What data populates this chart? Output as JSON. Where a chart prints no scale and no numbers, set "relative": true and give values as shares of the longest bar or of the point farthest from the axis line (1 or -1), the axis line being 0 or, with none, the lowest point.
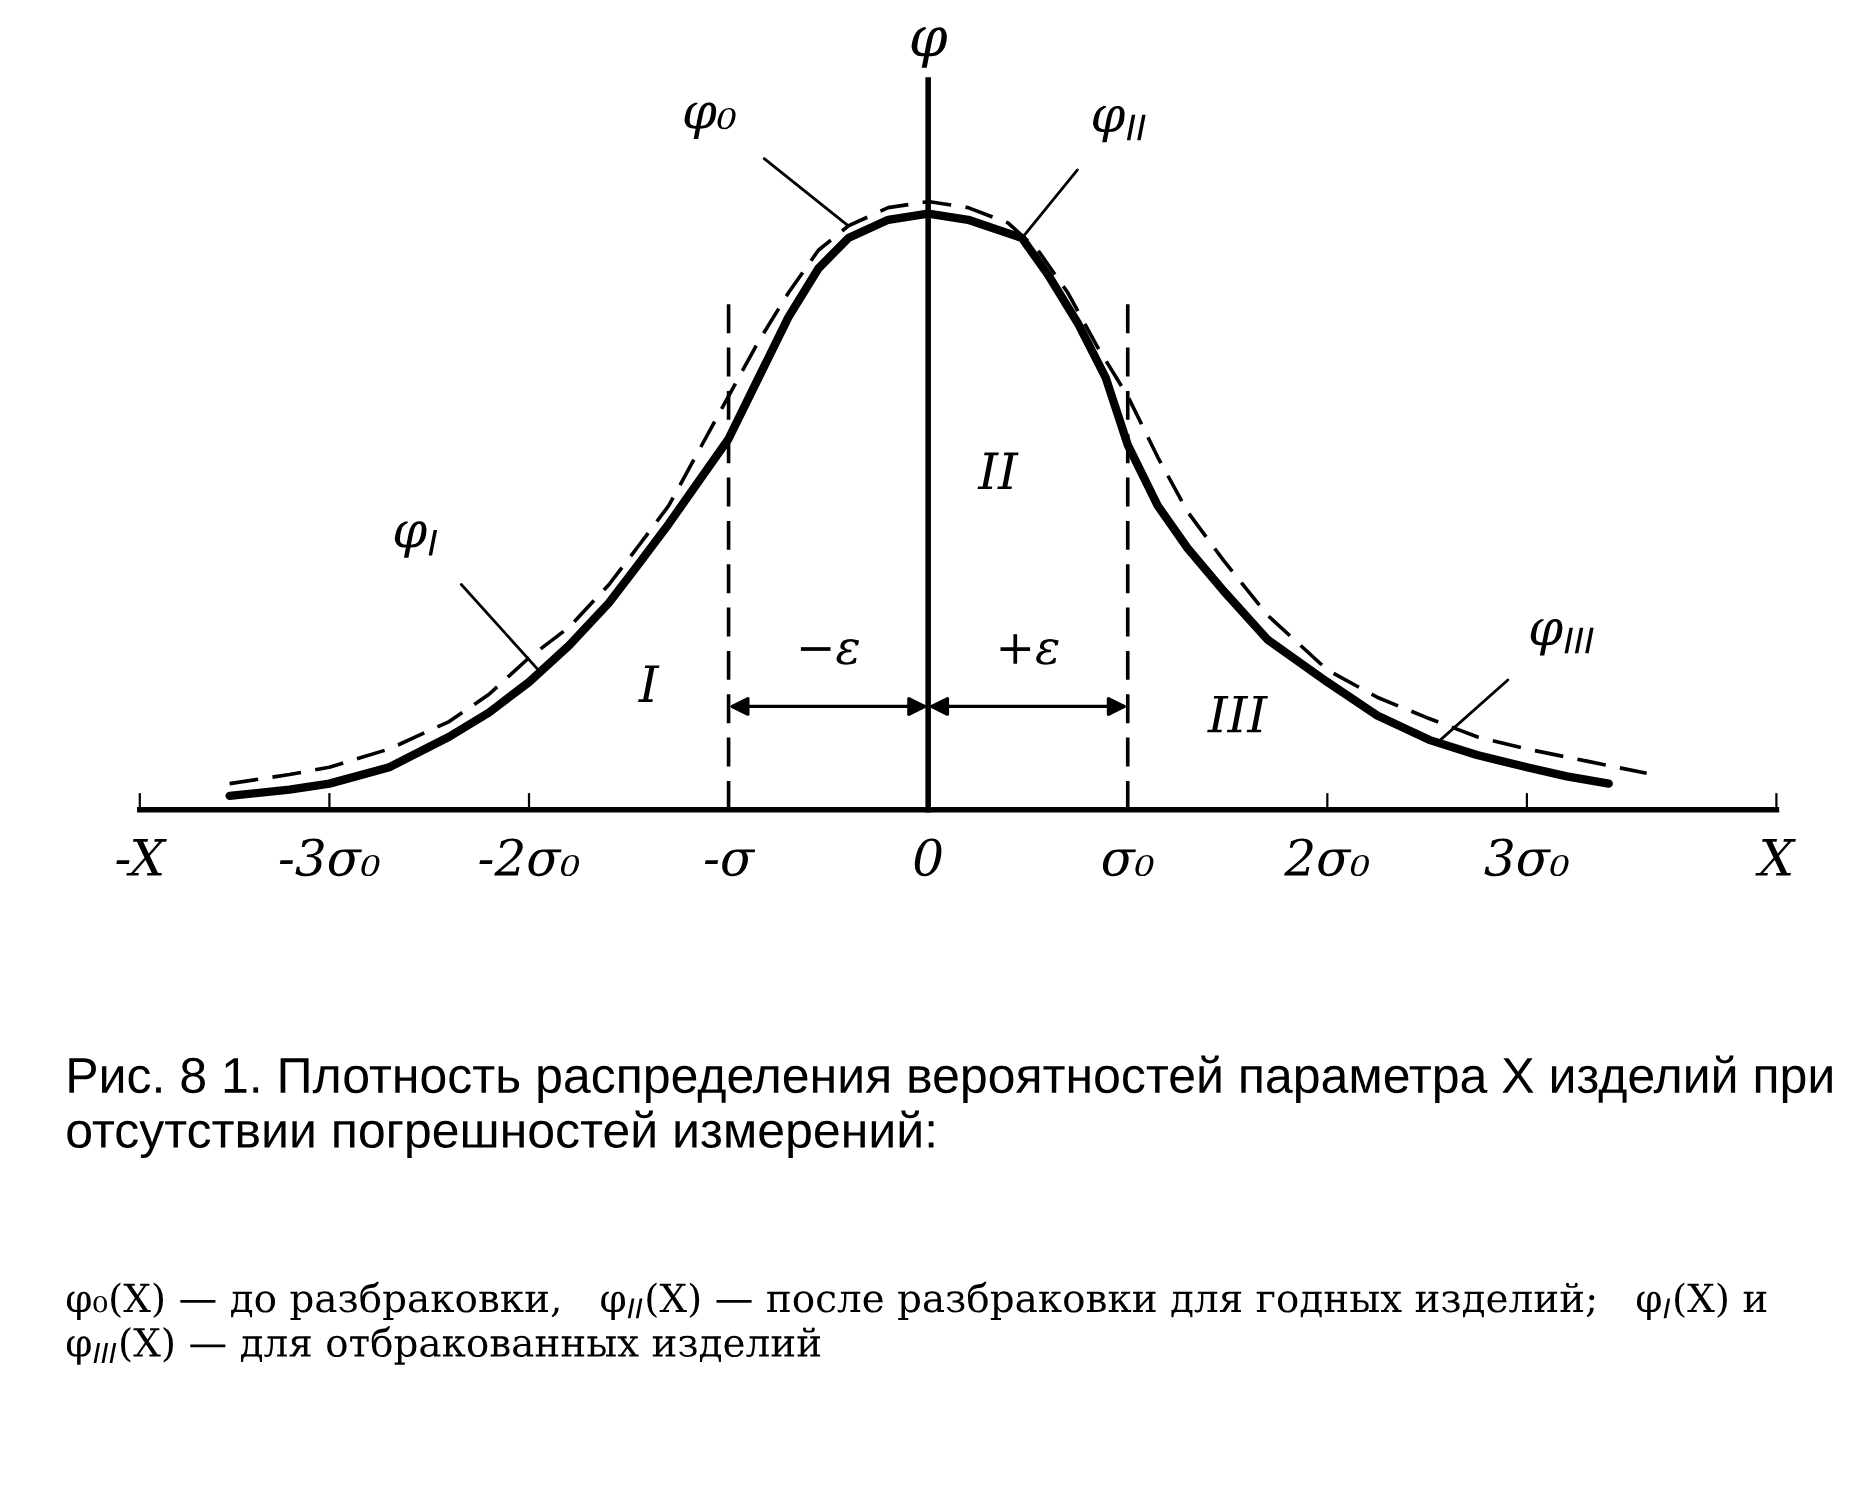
{
  "chart_data": {
    "type": "line",
    "relative": true,
    "ylabel": "φ",
    "xlim": [
      -3.95,
      4.25
    ],
    "xticks": [
      {
        "value": -3.95,
        "label": "-X"
      },
      {
        "value": -3,
        "label": "-3σ₀"
      },
      {
        "value": -2,
        "label": "-2σ₀"
      },
      {
        "value": -1,
        "label": "-σ"
      },
      0,
      {
        "value": 1,
        "label": "σ₀"
      },
      {
        "value": 2,
        "label": "2σ₀"
      },
      {
        "value": 3,
        "label": "3σ₀"
      },
      {
        "value": 4.25,
        "label": "X"
      }
    ],
    "series": [
      {
        "name": "φ₀",
        "color": "#000000",
        "line_style": "dashed",
        "x": [
          -3.5,
          -3.2,
          -3.0,
          -2.7,
          -2.4,
          -2.2,
          -2.0,
          -1.8,
          -1.6,
          -1.46,
          -1.3,
          -1.15,
          -1.0,
          -0.85,
          -0.7,
          -0.55,
          -0.4,
          -0.2,
          0,
          0.2,
          0.4,
          0.55,
          0.7,
          0.85,
          1.0,
          1.15,
          1.3,
          1.48,
          1.7,
          2.0,
          2.25,
          2.51,
          2.75,
          3.0,
          3.3,
          3.6
        ],
        "values": [
          0.043,
          0.058,
          0.07,
          0.1,
          0.145,
          0.19,
          0.25,
          0.3,
          0.37,
          0.43,
          0.5,
          0.59,
          0.68,
          0.77,
          0.85,
          0.92,
          0.96,
          0.99,
          1.0,
          0.99,
          0.965,
          0.92,
          0.85,
          0.76,
          0.68,
          0.58,
          0.49,
          0.41,
          0.32,
          0.23,
          0.185,
          0.15,
          0.12,
          0.1,
          0.08,
          0.06
        ]
      },
      {
        "color": "#000000",
        "line_style": "solid",
        "x": [
          -3.5,
          -3.2,
          -3.0,
          -2.7,
          -2.4,
          -2.2,
          -2.0,
          -1.8,
          -1.6,
          -1.46,
          -1.3,
          -1.15,
          -1.0,
          -0.85,
          -0.7,
          -0.55,
          -0.4,
          -0.2,
          0,
          0.2,
          0.47,
          0.6,
          0.75,
          0.89,
          1.0,
          1.15,
          1.3,
          1.48,
          1.7,
          2.0,
          2.25,
          2.51,
          2.75,
          3.0,
          3.2,
          3.41
        ],
        "values": [
          0.023,
          0.033,
          0.043,
          0.07,
          0.12,
          0.16,
          0.21,
          0.27,
          0.34,
          0.4,
          0.47,
          0.54,
          0.61,
          0.71,
          0.81,
          0.89,
          0.94,
          0.97,
          0.98,
          0.97,
          0.94,
          0.88,
          0.8,
          0.71,
          0.6,
          0.5,
          0.43,
          0.36,
          0.28,
          0.21,
          0.155,
          0.115,
          0.09,
          0.07,
          0.055,
          0.043
        ]
      }
    ],
    "ref_lines": [
      {
        "axis": "x",
        "value": -1,
        "line_style": "dashed",
        "color": "#000000"
      },
      {
        "axis": "x",
        "value": 1,
        "line_style": "dashed",
        "color": "#000000"
      }
    ],
    "annotations": [
      {
        "text": "φ$_{I}$",
        "x": -1.94,
        "y": 0.225
      },
      {
        "text": "φ$_{II}$",
        "x": 0.47,
        "y": 0.94
      },
      {
        "text": "φ$_{III}$",
        "x": 2.55,
        "y": 0.11
      },
      "I",
      "II",
      "III",
      "−ε",
      "+ε",
      "Рис. 8 1. Плотность распределения вероятностей параметра X изделий при отсутствии погрешностей измерений:",
      "φ₀(X) — до разбраковки,   φ$_{II}$(X) — после разбраковки для годных изделий;   φ$_{I}$(X) и φ$_{III}$(X) — для отбракованных изделий"
    ]
  }
}
